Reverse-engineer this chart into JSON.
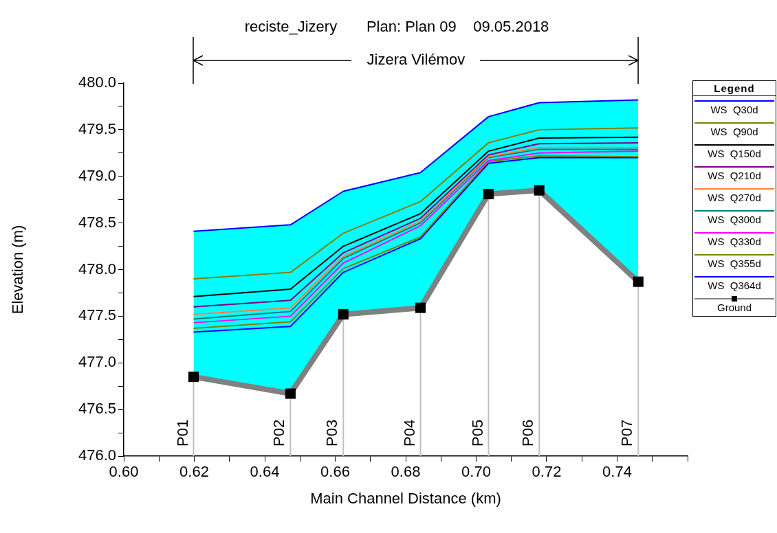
{
  "chart_data": {
    "type": "line",
    "title": "reciste_Jizery       Plan: Plan 09    09.05.2018",
    "subtitle": "Jizera Vilémov",
    "xlabel": "Main Channel Distance (km)",
    "ylabel": "Elevation (m)",
    "legend_title": "Legend",
    "legend": "right",
    "grid": false,
    "marker": "none",
    "x": [
      0.6198,
      0.6473,
      0.6623,
      0.6842,
      0.7035,
      0.7179,
      0.746
    ],
    "series": [
      {
        "name": "WS  Q30d",
        "type": "area",
        "color": "#0000ff",
        "values": [
          478.41,
          478.48,
          478.84,
          479.04,
          479.64,
          479.79,
          479.82
        ]
      },
      {
        "name": "WS  Q90d",
        "color": "#808000",
        "values": [
          477.9,
          477.97,
          478.39,
          478.73,
          479.36,
          479.5,
          479.52
        ]
      },
      {
        "name": "WS  Q150d",
        "color": "#000000",
        "values": [
          477.71,
          477.79,
          478.25,
          478.6,
          479.27,
          479.41,
          479.42
        ]
      },
      {
        "name": "WS  Q210d",
        "color": "#800080",
        "values": [
          477.6,
          477.67,
          478.18,
          478.55,
          479.23,
          479.35,
          479.36
        ]
      },
      {
        "name": "WS  Q270d",
        "color": "#ff8040",
        "values": [
          477.52,
          477.59,
          478.14,
          478.52,
          479.21,
          479.31,
          479.31
        ]
      },
      {
        "name": "WS  Q300d",
        "color": "#008080",
        "values": [
          477.47,
          477.55,
          478.12,
          478.5,
          479.2,
          479.29,
          479.29
        ]
      },
      {
        "name": "WS  Q330d",
        "color": "#ff00ff",
        "values": [
          477.43,
          477.5,
          478.07,
          478.47,
          479.17,
          479.25,
          479.27
        ]
      },
      {
        "name": "WS  Q355d",
        "color": "#808000",
        "values": [
          477.37,
          477.44,
          478.01,
          478.35,
          479.16,
          479.22,
          479.21
        ]
      },
      {
        "name": "WS  Q364d",
        "color": "#0000ff",
        "values": [
          477.33,
          477.39,
          477.97,
          478.33,
          479.14,
          479.2,
          479.2
        ]
      },
      {
        "name": "Ground",
        "color": "#808080",
        "marker": "square",
        "values": [
          476.85,
          476.67,
          477.52,
          477.59,
          478.81,
          478.85,
          477.87
        ]
      }
    ],
    "xlim": [
      0.6,
      0.76
    ],
    "xticks": [
      {
        "value": 0.6,
        "label": "0.60"
      },
      {
        "value": 0.61,
        "label": null
      },
      {
        "value": 0.62,
        "label": "0.62"
      },
      {
        "value": 0.63,
        "label": null
      },
      {
        "value": 0.64,
        "label": "0.64"
      },
      {
        "value": 0.65,
        "label": null
      },
      {
        "value": 0.66,
        "label": "0.66"
      },
      {
        "value": 0.67,
        "label": null
      },
      {
        "value": 0.68,
        "label": "0.68"
      },
      {
        "value": 0.69,
        "label": null
      },
      {
        "value": 0.7,
        "label": "0.70"
      },
      {
        "value": 0.71,
        "label": null
      },
      {
        "value": 0.72,
        "label": "0.72"
      },
      {
        "value": 0.73,
        "label": null
      },
      {
        "value": 0.74,
        "label": "0.74"
      },
      {
        "value": 0.75,
        "label": null
      },
      {
        "value": 0.76,
        "label": null
      }
    ],
    "ylim": [
      476,
      480
    ],
    "yticks": [
      {
        "value": 476,
        "label": "476.0"
      },
      {
        "value": 476.25,
        "label": null
      },
      {
        "value": 476.5,
        "label": "476.5"
      },
      {
        "value": 476.75,
        "label": null
      },
      {
        "value": 477,
        "label": "477.0"
      },
      {
        "value": 477.25,
        "label": null
      },
      {
        "value": 477.5,
        "label": "477.5"
      },
      {
        "value": 477.75,
        "label": null
      },
      {
        "value": 478,
        "label": "478.0"
      },
      {
        "value": 478.25,
        "label": null
      },
      {
        "value": 478.5,
        "label": "478.5"
      },
      {
        "value": 478.75,
        "label": null
      },
      {
        "value": 479,
        "label": "479.0"
      },
      {
        "value": 479.25,
        "label": null
      },
      {
        "value": 479.5,
        "label": "479.5"
      },
      {
        "value": 479.75,
        "label": null
      },
      {
        "value": 480,
        "label": "480.0"
      }
    ],
    "ref_lines": [
      {
        "axis": "x",
        "value": 0.6198,
        "label": "P01",
        "color": "#c0c0c0"
      },
      {
        "axis": "x",
        "value": 0.6473,
        "label": "P02",
        "color": "#c0c0c0"
      },
      {
        "axis": "x",
        "value": 0.6623,
        "label": "P03",
        "color": "#c0c0c0"
      },
      {
        "axis": "x",
        "value": 0.6842,
        "label": "P04",
        "color": "#c0c0c0"
      },
      {
        "axis": "x",
        "value": 0.7035,
        "label": "P05",
        "color": "#c0c0c0"
      },
      {
        "axis": "x",
        "value": 0.7179,
        "label": "P06",
        "color": "#c0c0c0"
      },
      {
        "axis": "x",
        "value": 0.746,
        "label": "P07",
        "color": "#c0c0c0"
      }
    ]
  }
}
